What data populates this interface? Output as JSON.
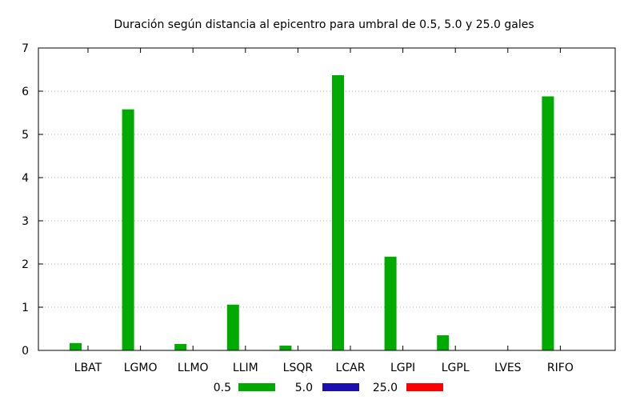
{
  "chart_data": {
    "type": "bar",
    "title": "Duración según distancia al epicentro para umbral de 0.5, 5.0 y 25.0 gales",
    "xlabel": "",
    "ylabel": "",
    "categories": [
      "LBAT",
      "LGMO",
      "LLMO",
      "LLIM",
      "LSQR",
      "LCAR",
      "LGPI",
      "LGPL",
      "LVES",
      "RIFO"
    ],
    "ylim": [
      0,
      7
    ],
    "yticks": [
      0,
      1,
      2,
      3,
      4,
      5,
      6,
      7
    ],
    "grid": true,
    "legend_position": "bottom",
    "series": [
      {
        "name": "0.5",
        "color": "#00aa00",
        "values": [
          0.17,
          5.58,
          0.15,
          1.06,
          0.11,
          6.37,
          2.17,
          0.35,
          0.0,
          5.88
        ]
      },
      {
        "name": "5.0",
        "color": "#1a0fb0",
        "values": [
          0,
          0,
          0,
          0,
          0,
          0,
          0,
          0,
          0,
          0
        ]
      },
      {
        "name": "25.0",
        "color": "#ff0000",
        "values": [
          0,
          0,
          0,
          0,
          0,
          0,
          0,
          0,
          0,
          0
        ]
      }
    ]
  }
}
